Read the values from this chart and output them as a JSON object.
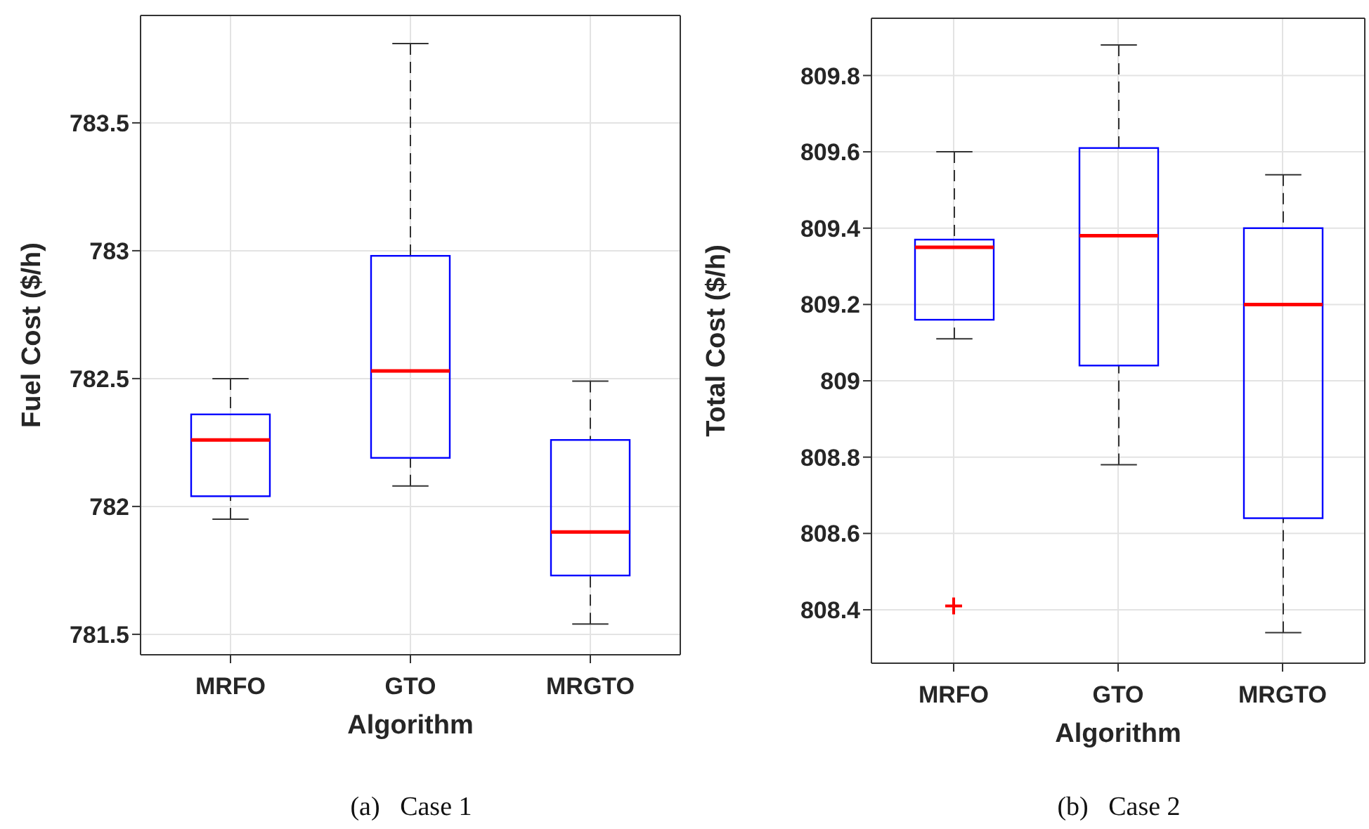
{
  "chart_data": [
    {
      "type": "box",
      "categories": [
        "MRFO",
        "GTO",
        "MRGTO"
      ],
      "color": "#0000ff",
      "xlabel": "Algorithm",
      "ylabel": "Fuel Cost ($/h)",
      "ylim": [
        781.42,
        783.92
      ],
      "yticks": [
        781.5,
        782,
        782.5,
        783,
        783.5
      ],
      "grid": true,
      "annotations": [
        "(a)   Case 1"
      ],
      "boxes": [
        {
          "low": 781.95,
          "q1": 782.04,
          "median": 782.26,
          "q3": 782.36,
          "high": 782.5
        },
        {
          "low": 782.08,
          "q1": 782.19,
          "median": 782.53,
          "q3": 782.98,
          "high": 783.81
        },
        {
          "low": 781.54,
          "q1": 781.73,
          "median": 781.9,
          "q3": 782.26,
          "high": 782.49
        }
      ]
    },
    {
      "type": "box",
      "categories": [
        "MRFO",
        "GTO",
        "MRGTO"
      ],
      "color": "#0000ff",
      "xlabel": "Algorithm",
      "ylabel": "Total Cost ($/h)",
      "ylim": [
        808.26,
        809.95
      ],
      "yticks": [
        808.4,
        808.6,
        808.8,
        809,
        809.2,
        809.4,
        809.6,
        809.8
      ],
      "grid": true,
      "annotations": [
        "(b)   Case 2"
      ],
      "boxes": [
        {
          "low": 809.11,
          "q1": 809.16,
          "median": 809.35,
          "q3": 809.37,
          "high": 809.6,
          "outliers": [
            808.41
          ]
        },
        {
          "low": 808.78,
          "q1": 809.04,
          "median": 809.38,
          "q3": 809.61,
          "high": 809.88
        },
        {
          "low": 808.34,
          "q1": 808.64,
          "median": 809.2,
          "q3": 809.4,
          "high": 809.54
        }
      ]
    }
  ]
}
